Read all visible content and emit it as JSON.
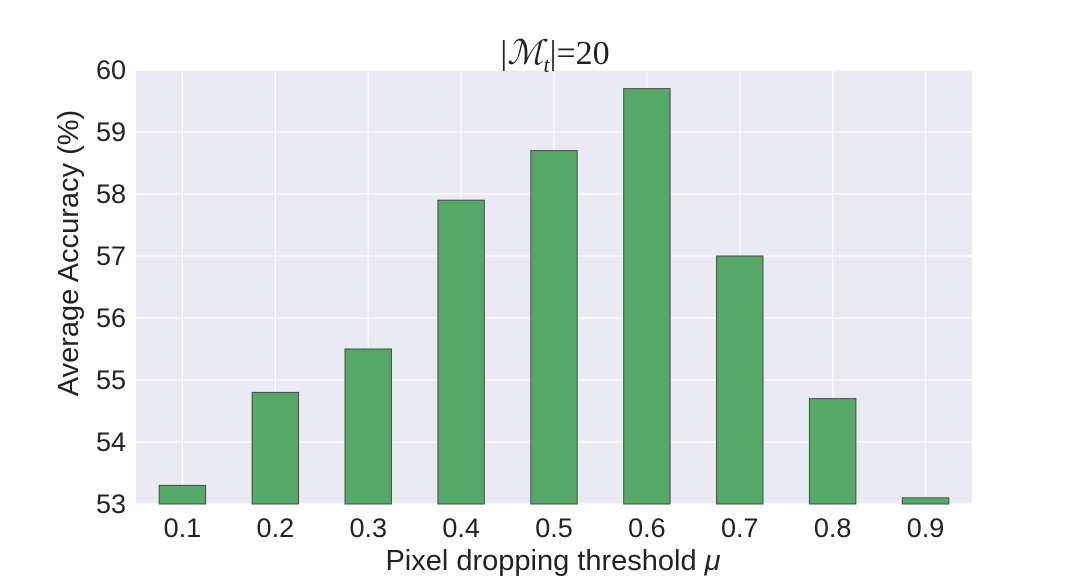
{
  "chart_data": {
    "type": "bar",
    "title_parts": {
      "bar_left": "|",
      "symbol": "ℳ",
      "subscript": "t",
      "bar_right": "|",
      "suffix": "=20"
    },
    "xlabel": "Pixel dropping threshold",
    "xlabel_symbol": "μ",
    "ylabel": "Average Accuracy (%)",
    "categories": [
      "0.1",
      "0.2",
      "0.3",
      "0.4",
      "0.5",
      "0.6",
      "0.7",
      "0.8",
      "0.9"
    ],
    "values": [
      53.3,
      54.8,
      55.5,
      57.9,
      58.7,
      59.7,
      57.0,
      54.7,
      53.1
    ],
    "ylim": [
      53,
      60
    ],
    "yticks": [
      "53",
      "54",
      "55",
      "56",
      "57",
      "58",
      "59",
      "60"
    ],
    "grid": true,
    "bar_color": "#55a868",
    "bar_edge_color": "#4a4a4a",
    "plot_background": "#eaeaf2",
    "grid_color": "#ffffff"
  }
}
